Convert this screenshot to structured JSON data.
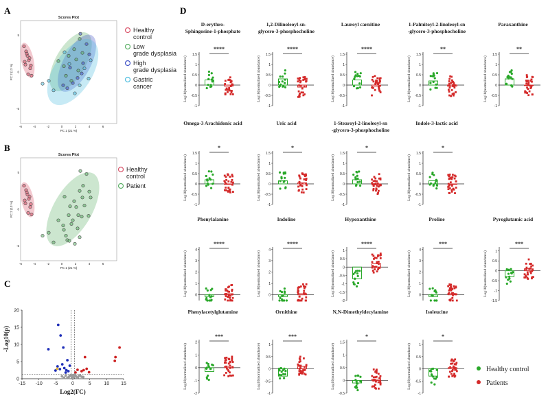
{
  "panel_labels": {
    "a": "A",
    "b": "B",
    "c": "C",
    "d": "D"
  },
  "colors": {
    "healthy": "#d9546a",
    "low": "#5fb26a",
    "high": "#4355c8",
    "gastric": "#52bfe0",
    "patient": "#5fb26a",
    "hc_green": "#2aa82a",
    "pt_red": "#d42a2a",
    "volcano_up": "#cc1f1f",
    "volcano_down": "#1f2fb8",
    "volcano_ns": "#9a9a9a",
    "volcano_mid": "#e8b430"
  },
  "chart_data": [
    {
      "type": "scatter",
      "id": "A",
      "title": "Scores Plot",
      "xlabel": "PC 1 (21 %)",
      "ylabel": "PC 2 (13 %)",
      "xlim": [
        -6,
        8
      ],
      "ylim": [
        -7,
        7
      ],
      "xticks": [
        -6,
        -4,
        -2,
        0,
        2,
        4,
        6
      ],
      "yticks": [
        -5,
        0,
        5
      ],
      "legend": [
        "Healthy control",
        "Low grade dysplasia",
        "High grade dysplasia",
        "Gastric cancer"
      ],
      "series": [
        {
          "name": "Healthy control",
          "points": [
            [
              -5.5,
              3.5
            ],
            [
              -5.2,
              2.8
            ],
            [
              -5,
              2.2
            ],
            [
              -4.8,
              1.6
            ],
            [
              -5.3,
              1
            ],
            [
              -4.6,
              0.5
            ],
            [
              -4.9,
              -0.3
            ],
            [
              -4.5,
              0.9
            ],
            [
              -5.1,
              2.5
            ],
            [
              -4.7,
              1.9
            ],
            [
              -4.4,
              -0.5
            ],
            [
              -5.4,
              1.4
            ]
          ]
        },
        {
          "name": "Low grade dysplasia",
          "points": [
            [
              -0.5,
              1.5
            ],
            [
              0.3,
              0.8
            ],
            [
              1,
              2.2
            ],
            [
              1.8,
              3.1
            ],
            [
              0.6,
              -0.5
            ],
            [
              2.1,
              1.7
            ],
            [
              2.6,
              4.5
            ],
            [
              1.4,
              -1.2
            ],
            [
              3,
              2.6
            ],
            [
              2.4,
              0.2
            ]
          ]
        },
        {
          "name": "High grade dysplasia",
          "points": [
            [
              0.8,
              -2.2
            ],
            [
              1.6,
              -1.5
            ],
            [
              2.3,
              -0.8
            ],
            [
              3.1,
              1.2
            ],
            [
              3.6,
              3.8
            ],
            [
              2.9,
              -0.2
            ],
            [
              1.2,
              0.6
            ],
            [
              0.2,
              -1.8
            ],
            [
              4,
              2.4
            ],
            [
              2.7,
              5.2
            ]
          ]
        },
        {
          "name": "Gastric cancer",
          "points": [
            [
              -2.8,
              -1.6
            ],
            [
              -1.9,
              -1.2
            ],
            [
              -1.2,
              -2.5
            ],
            [
              1.9,
              -2.9
            ],
            [
              2.6,
              -1.8
            ],
            [
              3.3,
              0.5
            ],
            [
              4.2,
              1.6
            ],
            [
              1.1,
              1.1
            ],
            [
              3.9,
              -0.9
            ],
            [
              0.4,
              2.7
            ]
          ]
        }
      ]
    },
    {
      "type": "scatter",
      "id": "B",
      "title": "Scores Plot",
      "xlabel": "PC 1 (21 %)",
      "ylabel": "PC 2 (13 %)",
      "xlim": [
        -6,
        8
      ],
      "ylim": [
        -7,
        7
      ],
      "xticks": [
        -6,
        -4,
        -2,
        0,
        2,
        4,
        6
      ],
      "yticks": [
        -5,
        0,
        5
      ],
      "legend": [
        "Healthy control",
        "Patient"
      ],
      "series": [
        {
          "name": "Healthy control",
          "points": [
            [
              -5.5,
              3.2
            ],
            [
              -5.2,
              2.6
            ],
            [
              -5,
              2
            ],
            [
              -4.8,
              1.4
            ],
            [
              -5.3,
              0.8
            ],
            [
              -4.6,
              0.3
            ],
            [
              -4.9,
              -0.5
            ],
            [
              -4.5,
              0.7
            ],
            [
              -5.1,
              2.3
            ],
            [
              -4.7,
              1.7
            ],
            [
              -4.4,
              -0.7
            ],
            [
              -5.4,
              1.2
            ]
          ]
        },
        {
          "name": "Patient",
          "points": [
            [
              -0.5,
              -1.5
            ],
            [
              0.3,
              -2.8
            ],
            [
              1,
              -0.8
            ],
            [
              1.8,
              1.1
            ],
            [
              0.6,
              -3.6
            ],
            [
              2.1,
              0.3
            ],
            [
              2.6,
              2.5
            ],
            [
              1.4,
              -2
            ],
            [
              3,
              1.6
            ],
            [
              2.4,
              -0.8
            ],
            [
              0.8,
              -4.2
            ],
            [
              1.6,
              -1.5
            ],
            [
              2.3,
              -2.6
            ],
            [
              3.1,
              3.2
            ],
            [
              3.6,
              4.8
            ],
            [
              2.9,
              -1
            ],
            [
              1.2,
              0.4
            ],
            [
              0.2,
              -2.2
            ],
            [
              4,
              2.4
            ],
            [
              2.7,
              5.2
            ],
            [
              -2.8,
              -3.6
            ],
            [
              -1.9,
              -3.2
            ],
            [
              -1.2,
              -4.5
            ],
            [
              1.9,
              -4.7
            ],
            [
              2.6,
              -3.8
            ],
            [
              3.3,
              0.5
            ],
            [
              4.2,
              1.6
            ],
            [
              1.1,
              -4.3
            ],
            [
              3.9,
              -0.9
            ],
            [
              0.4,
              1.7
            ]
          ]
        }
      ]
    },
    {
      "type": "scatter",
      "id": "C",
      "title": "",
      "xlabel": "Log2(FC)",
      "ylabel": "-Log10(p)",
      "xlim": [
        -15,
        15
      ],
      "ylim": [
        0,
        20
      ],
      "xticks": [
        -15,
        -10,
        -5,
        0,
        5,
        10,
        15
      ],
      "yticks": [
        0,
        5,
        10,
        15,
        20
      ],
      "threshold_y": 1.3,
      "threshold_x": [
        -0.5,
        0.5
      ],
      "series": [
        {
          "name": "down",
          "points": [
            [
              -7.2,
              8.6
            ],
            [
              -4.3,
              15.7
            ],
            [
              -3.6,
              12.6
            ],
            [
              -2.8,
              9.1
            ],
            [
              -3.1,
              4.2
            ],
            [
              -4.5,
              3.6
            ],
            [
              -2.5,
              3.1
            ],
            [
              -1.9,
              2.5
            ],
            [
              -3.8,
              2.8
            ],
            [
              -1.3,
              2.2
            ],
            [
              -2.1,
              1.8
            ],
            [
              -1.6,
              5.4
            ],
            [
              -0.9,
              3.8
            ],
            [
              -5.1,
              2.4
            ]
          ]
        },
        {
          "name": "up",
          "points": [
            [
              13.8,
              9.1
            ],
            [
              12.6,
              6.3
            ],
            [
              12.4,
              5.2
            ],
            [
              3.6,
              6.3
            ],
            [
              3.2,
              2.5
            ],
            [
              4.1,
              2.9
            ],
            [
              2.6,
              2.2
            ],
            [
              4.8,
              1.9
            ],
            [
              1.4,
              2.6
            ],
            [
              0.8,
              1.8
            ]
          ]
        },
        {
          "name": "mid",
          "points": [
            [
              -4.6,
              2.9
            ]
          ]
        },
        {
          "name": "ns",
          "points": [
            [
              -2.1,
              0.9
            ],
            [
              -1.2,
              0.5
            ],
            [
              -0.6,
              0.8
            ],
            [
              0,
              0.3
            ],
            [
              0.4,
              1.1
            ],
            [
              0.9,
              0.7
            ],
            [
              1.5,
              0.4
            ],
            [
              2.1,
              1
            ],
            [
              -1.6,
              0.2
            ],
            [
              0.2,
              0.6
            ],
            [
              -0.3,
              1
            ],
            [
              1.2,
              0.2
            ],
            [
              -0.9,
              0.9
            ],
            [
              2.6,
              0.6
            ],
            [
              -2.6,
              0.3
            ],
            [
              0.7,
              1.2
            ],
            [
              -0.1,
              0.1
            ],
            [
              1.8,
              0.8
            ],
            [
              3.1,
              0.5
            ],
            [
              -3.2,
              0.7
            ]
          ]
        }
      ]
    },
    {
      "type": "scatter_bar",
      "id": "D",
      "ylabel": "Log10(normalized abundance)",
      "legend": [
        "Healthy control",
        "Patients"
      ],
      "groups": [
        "Healthy control",
        "Patients"
      ],
      "metabolites": [
        {
          "name_lines": [
            "D-erythro-",
            "Sphingosine-1-phosphate"
          ],
          "sig": "****",
          "hc_mean": 0.25,
          "pt_mean": -0.05,
          "yticks": [
            -1.0,
            -0.5,
            0.0,
            0.5,
            1.0,
            1.5
          ],
          "ylim": [
            -1.0,
            1.6
          ]
        },
        {
          "name_lines": [
            "1,2-Dilinoleoyl-sn-",
            "glycero-3-phosphocholine"
          ],
          "sig": "****",
          "hc_mean": 0.3,
          "pt_mean": -0.1,
          "yticks": [
            -1.0,
            -0.5,
            0.0,
            0.5,
            1.0,
            1.5
          ],
          "ylim": [
            -1.0,
            1.6
          ]
        },
        {
          "name_lines": [
            "Lauroyl carnitine"
          ],
          "sig": "****",
          "hc_mean": 0.25,
          "pt_mean": -0.05,
          "yticks": [
            -1.0,
            -0.5,
            0.0,
            0.5,
            1.0,
            1.5
          ],
          "ylim": [
            -1.0,
            1.6
          ]
        },
        {
          "name_lines": [
            "1-Palmitoyl-2-linoleoyl-sn",
            "-glycero-3-phosphocholine"
          ],
          "sig": "**",
          "hc_mean": 0.2,
          "pt_mean": -0.05,
          "yticks": [
            -1.0,
            -0.5,
            0.0,
            0.5,
            1.0,
            1.5
          ],
          "ylim": [
            -1.0,
            1.6
          ]
        },
        {
          "name_lines": [
            "Paraxanthine"
          ],
          "sig": "**",
          "hc_mean": 0.3,
          "pt_mean": 0.0,
          "yticks": [
            -1.0,
            -0.5,
            0.0,
            0.5,
            1.0,
            1.5
          ],
          "ylim": [
            -1.0,
            1.6
          ]
        },
        {
          "name_lines": [
            "Omega-3 Arachidonic acid"
          ],
          "sig": "*",
          "hc_mean": 0.2,
          "pt_mean": 0.0,
          "yticks": [
            -1.0,
            -0.5,
            0.0,
            0.5,
            1.0,
            1.5
          ],
          "ylim": [
            -1.0,
            1.6
          ]
        },
        {
          "name_lines": [
            "Uric acid"
          ],
          "sig": "*",
          "hc_mean": 0.15,
          "pt_mean": 0.05,
          "yticks": [
            -1.0,
            -0.5,
            0.0,
            0.5,
            1.0,
            1.5
          ],
          "ylim": [
            -1.0,
            1.6
          ]
        },
        {
          "name_lines": [
            "1-Stearoyl-2-linoleoyl-sn",
            "-glycero-3-phosphocholine"
          ],
          "sig": "*",
          "hc_mean": 0.2,
          "pt_mean": 0.0,
          "yticks": [
            -1.0,
            -0.5,
            0.0,
            0.5,
            1.0,
            1.5
          ],
          "ylim": [
            -1.0,
            1.6
          ]
        },
        {
          "name_lines": [
            "Indole-3-lactic acid"
          ],
          "sig": "*",
          "hc_mean": 0.15,
          "pt_mean": 0.0,
          "yticks": [
            -1.0,
            -0.5,
            0.0,
            0.5,
            1.0,
            1.5
          ],
          "ylim": [
            -1.0,
            1.6
          ]
        },
        {
          "name_lines": [
            "Phenylalanine"
          ],
          "sig": "****",
          "hc_mean": -0.15,
          "pt_mean": 0.1,
          "yticks": [
            0,
            1,
            2,
            3,
            4
          ],
          "ylim": [
            -0.5,
            4.2
          ]
        },
        {
          "name_lines": [
            "Indoline"
          ],
          "sig": "****",
          "hc_mean": -0.15,
          "pt_mean": 0.1,
          "yticks": [
            0,
            1,
            2,
            3,
            4
          ],
          "ylim": [
            -0.5,
            4.2
          ]
        },
        {
          "name_lines": [
            "Hypoxanthine"
          ],
          "sig": "****",
          "hc_mean": -0.7,
          "pt_mean": 0.2,
          "yticks": [
            -2.0,
            -1.5,
            -1.0,
            -0.5,
            0.0,
            0.5,
            1.0
          ],
          "ylim": [
            -2.0,
            1.2
          ]
        },
        {
          "name_lines": [
            "Proline"
          ],
          "sig": "***",
          "hc_mean": -0.15,
          "pt_mean": 0.1,
          "yticks": [
            0,
            1,
            2,
            3,
            4
          ],
          "ylim": [
            -0.5,
            4.2
          ]
        },
        {
          "name_lines": [
            "Pyroglutamic acid"
          ],
          "sig": "***",
          "hc_mean": -0.3,
          "pt_mean": 0.1,
          "yticks": [
            -1.5,
            -1.0,
            -0.5,
            0.0,
            0.5,
            1.0
          ],
          "ylim": [
            -1.5,
            1.2
          ]
        },
        {
          "name_lines": [
            "Phenylacetylglutamine"
          ],
          "sig": "***",
          "hc_mean": -0.3,
          "pt_mean": 0.1,
          "yticks": [
            -2,
            -1,
            0,
            1,
            2
          ],
          "ylim": [
            -2,
            2.2
          ]
        },
        {
          "name_lines": [
            "Ornithine"
          ],
          "sig": "***",
          "hc_mean": -0.3,
          "pt_mean": 0.1,
          "yticks": [
            -1.0,
            -0.5,
            0.0,
            0.5,
            1.0
          ],
          "ylim": [
            -1.0,
            1.2
          ]
        },
        {
          "name_lines": [
            "N,N-Dimethyldecylamine"
          ],
          "sig": "*",
          "hc_mean": -0.1,
          "pt_mean": 0.05,
          "yticks": [
            -0.5,
            0.0,
            0.5,
            1.0,
            1.5
          ],
          "ylim": [
            -0.5,
            1.6
          ]
        },
        {
          "name_lines": [
            "Isoleucine"
          ],
          "sig": "*",
          "hc_mean": -0.3,
          "pt_mean": 0.05,
          "yticks": [
            -1.0,
            -0.5,
            0.0,
            0.5,
            1.0
          ],
          "ylim": [
            -1.0,
            1.2
          ]
        }
      ]
    }
  ]
}
